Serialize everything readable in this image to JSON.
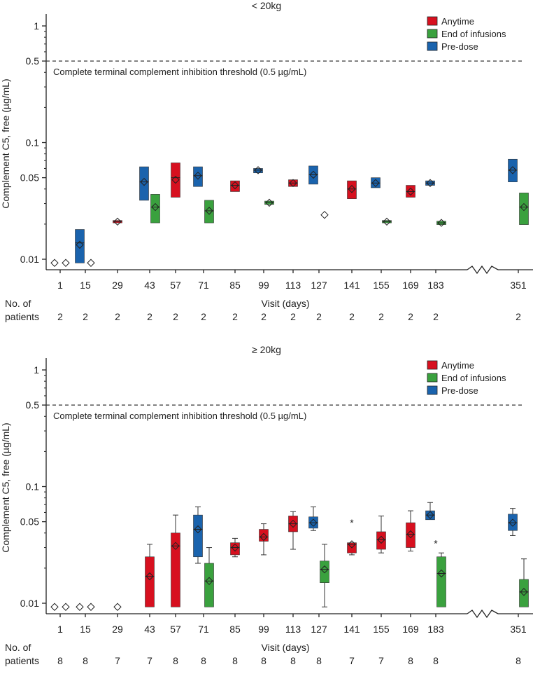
{
  "colors": {
    "anytime": "#d7101f",
    "end": "#3aa13e",
    "pre": "#1a63ad",
    "axis": "#222222"
  },
  "legend": {
    "anytime": "Anytime",
    "end": "End of infusions",
    "pre": "Pre-dose"
  },
  "xlabel": "Visit (days)",
  "npatients_label": [
    "No. of",
    "patients"
  ],
  "threshold_text": "Complete terminal complement inhibition threshold (0.5 µg/mL)",
  "ylabel": "Complement C5, free (µg/mL)",
  "chart_data": [
    {
      "type": "box",
      "title": "< 20kg",
      "xlabel": "Visit (days)",
      "ylabel": "Complement C5, free (µg/mL)",
      "yscale": "log",
      "ylim": [
        0.008,
        1.5
      ],
      "yticks": [
        0.01,
        0.05,
        0.1,
        0.5,
        1
      ],
      "ytick_labels": [
        "0.01",
        "0.05",
        "0.1",
        "0.5",
        "1"
      ],
      "threshold": 0.5,
      "visits": [
        "1",
        "15",
        "29",
        "43",
        "57",
        "71",
        "85",
        "99",
        "113",
        "127",
        "141",
        "155",
        "169",
        "183",
        "351"
      ],
      "n_patients": [
        "2",
        "2",
        "2",
        "2",
        "2",
        "2",
        "2",
        "2",
        "2",
        "2",
        "2",
        "2",
        "2",
        "2",
        "2"
      ],
      "boxes": [
        {
          "visit": "1",
          "type": "pre",
          "mean": 0.0093,
          "empty": true
        },
        {
          "visit": "1",
          "type": "end",
          "mean": 0.0093,
          "empty": true
        },
        {
          "visit": "15",
          "type": "pre",
          "q1": 0.0093,
          "q3": 0.018,
          "median": 0.0138,
          "mean": 0.0133
        },
        {
          "visit": "15",
          "type": "end",
          "mean": 0.0093,
          "empty": true
        },
        {
          "visit": "29",
          "type": "anytime",
          "q1": 0.0205,
          "q3": 0.0215,
          "median": 0.021,
          "mean": 0.021
        },
        {
          "visit": "43",
          "type": "pre",
          "q1": 0.032,
          "q3": 0.062,
          "median": 0.046,
          "mean": 0.046
        },
        {
          "visit": "43",
          "type": "end",
          "q1": 0.0205,
          "q3": 0.036,
          "median": 0.028,
          "mean": 0.028
        },
        {
          "visit": "57",
          "type": "anytime",
          "q1": 0.034,
          "q3": 0.067,
          "median": 0.05,
          "mean": 0.048
        },
        {
          "visit": "71",
          "type": "pre",
          "q1": 0.042,
          "q3": 0.062,
          "median": 0.052,
          "mean": 0.052
        },
        {
          "visit": "71",
          "type": "end",
          "q1": 0.0205,
          "q3": 0.032,
          "median": 0.026,
          "mean": 0.026
        },
        {
          "visit": "85",
          "type": "anytime",
          "q1": 0.038,
          "q3": 0.047,
          "median": 0.043,
          "mean": 0.043
        },
        {
          "visit": "99",
          "type": "pre",
          "q1": 0.055,
          "q3": 0.06,
          "median": 0.058,
          "mean": 0.058
        },
        {
          "visit": "99",
          "type": "end",
          "q1": 0.0295,
          "q3": 0.0315,
          "median": 0.0305,
          "mean": 0.0305
        },
        {
          "visit": "113",
          "type": "anytime",
          "q1": 0.042,
          "q3": 0.048,
          "median": 0.045,
          "mean": 0.045
        },
        {
          "visit": "127",
          "type": "pre",
          "q1": 0.044,
          "q3": 0.063,
          "median": 0.053,
          "mean": 0.053
        },
        {
          "visit": "127",
          "type": "end",
          "mean": 0.024,
          "empty": true
        },
        {
          "visit": "141",
          "type": "anytime",
          "q1": 0.033,
          "q3": 0.047,
          "median": 0.04,
          "mean": 0.04
        },
        {
          "visit": "155",
          "type": "pre",
          "q1": 0.041,
          "q3": 0.05,
          "median": 0.045,
          "mean": 0.045
        },
        {
          "visit": "155",
          "type": "end",
          "q1": 0.0205,
          "q3": 0.0215,
          "median": 0.021,
          "mean": 0.021
        },
        {
          "visit": "169",
          "type": "anytime",
          "q1": 0.034,
          "q3": 0.043,
          "median": 0.038,
          "mean": 0.038
        },
        {
          "visit": "183",
          "type": "pre",
          "q1": 0.043,
          "q3": 0.047,
          "median": 0.045,
          "mean": 0.045
        },
        {
          "visit": "183",
          "type": "end",
          "q1": 0.0198,
          "q3": 0.0212,
          "median": 0.0205,
          "mean": 0.0205
        },
        {
          "visit": "351",
          "type": "pre",
          "q1": 0.046,
          "q3": 0.072,
          "median": 0.058,
          "mean": 0.058
        },
        {
          "visit": "351",
          "type": "end",
          "q1": 0.0198,
          "q3": 0.037,
          "median": 0.028,
          "mean": 0.028
        }
      ],
      "outliers": []
    },
    {
      "type": "box",
      "title": "≥ 20kg",
      "xlabel": "Visit (days)",
      "ylabel": "Complement C5, free (µg/mL)",
      "yscale": "log",
      "ylim": [
        0.008,
        1.5
      ],
      "yticks": [
        0.01,
        0.05,
        0.1,
        0.5,
        1
      ],
      "ytick_labels": [
        "0.01",
        "0.05",
        "0.1",
        "0.5",
        "1"
      ],
      "threshold": 0.5,
      "visits": [
        "1",
        "15",
        "29",
        "43",
        "57",
        "71",
        "85",
        "99",
        "113",
        "127",
        "141",
        "155",
        "169",
        "183",
        "351"
      ],
      "n_patients": [
        "8",
        "8",
        "7",
        "7",
        "8",
        "8",
        "8",
        "8",
        "8",
        "8",
        "7",
        "7",
        "8",
        "8",
        "8"
      ],
      "boxes": [
        {
          "visit": "1",
          "type": "pre",
          "mean": 0.0093,
          "empty": true
        },
        {
          "visit": "1",
          "type": "end",
          "mean": 0.0093,
          "empty": true
        },
        {
          "visit": "15",
          "type": "pre",
          "mean": 0.0093,
          "empty": true
        },
        {
          "visit": "15",
          "type": "end",
          "mean": 0.0093,
          "empty": true
        },
        {
          "visit": "29",
          "type": "anytime",
          "mean": 0.0093,
          "empty": true
        },
        {
          "visit": "43",
          "type": "anytime",
          "q1": 0.0093,
          "q3": 0.025,
          "median": 0.017,
          "mean": 0.017,
          "whisker_hi": 0.032
        },
        {
          "visit": "57",
          "type": "anytime",
          "q1": 0.0093,
          "q3": 0.04,
          "median": 0.031,
          "mean": 0.031,
          "whisker_hi": 0.057
        },
        {
          "visit": "71",
          "type": "pre",
          "q1": 0.025,
          "q3": 0.057,
          "median": 0.043,
          "mean": 0.043,
          "whisker_lo": 0.022,
          "whisker_hi": 0.067
        },
        {
          "visit": "71",
          "type": "end",
          "q1": 0.0093,
          "q3": 0.022,
          "median": 0.0155,
          "mean": 0.0155,
          "whisker_hi": 0.03
        },
        {
          "visit": "85",
          "type": "anytime",
          "q1": 0.026,
          "q3": 0.033,
          "median": 0.03,
          "mean": 0.03,
          "whisker_lo": 0.025,
          "whisker_hi": 0.036
        },
        {
          "visit": "99",
          "type": "anytime",
          "q1": 0.034,
          "q3": 0.043,
          "median": 0.037,
          "mean": 0.037,
          "whisker_lo": 0.026,
          "whisker_hi": 0.048
        },
        {
          "visit": "113",
          "type": "anytime",
          "q1": 0.041,
          "q3": 0.056,
          "median": 0.048,
          "mean": 0.048,
          "whisker_lo": 0.029,
          "whisker_hi": 0.061
        },
        {
          "visit": "127",
          "type": "pre",
          "q1": 0.044,
          "q3": 0.055,
          "median": 0.049,
          "mean": 0.049,
          "whisker_lo": 0.042,
          "whisker_hi": 0.067
        },
        {
          "visit": "127",
          "type": "end",
          "q1": 0.015,
          "q3": 0.023,
          "median": 0.0195,
          "mean": 0.0195,
          "whisker_lo": 0.0093,
          "whisker_hi": 0.032
        },
        {
          "visit": "141",
          "type": "anytime",
          "q1": 0.027,
          "q3": 0.033,
          "median": 0.032,
          "mean": 0.032,
          "whisker_lo": 0.026
        },
        {
          "visit": "155",
          "type": "anytime",
          "q1": 0.029,
          "q3": 0.041,
          "median": 0.035,
          "mean": 0.035,
          "whisker_lo": 0.027,
          "whisker_hi": 0.056
        },
        {
          "visit": "169",
          "type": "anytime",
          "q1": 0.03,
          "q3": 0.049,
          "median": 0.039,
          "mean": 0.039,
          "whisker_lo": 0.028,
          "whisker_hi": 0.062
        },
        {
          "visit": "183",
          "type": "pre",
          "q1": 0.052,
          "q3": 0.062,
          "median": 0.057,
          "mean": 0.057,
          "whisker_hi": 0.073
        },
        {
          "visit": "183",
          "type": "end",
          "q1": 0.0093,
          "q3": 0.025,
          "median": 0.018,
          "mean": 0.018,
          "whisker_hi": 0.027
        },
        {
          "visit": "351",
          "type": "pre",
          "q1": 0.042,
          "q3": 0.058,
          "median": 0.049,
          "mean": 0.049,
          "whisker_lo": 0.038,
          "whisker_hi": 0.065
        },
        {
          "visit": "351",
          "type": "end",
          "q1": 0.0093,
          "q3": 0.016,
          "median": 0.0125,
          "mean": 0.0125,
          "whisker_hi": 0.024
        }
      ],
      "outliers": [
        {
          "visit": "141",
          "value": 0.051
        },
        {
          "visit": "183",
          "value": 0.034
        }
      ]
    }
  ]
}
